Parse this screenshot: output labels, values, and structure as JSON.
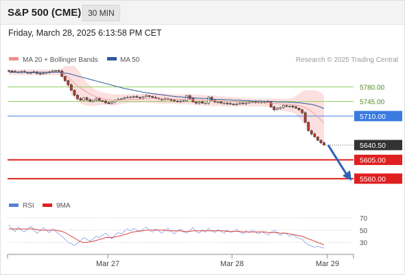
{
  "header": {
    "title": "S&P 500 (CME)",
    "interval": "30 MIN",
    "datetime": "Friday, March 28, 2025 6:13:58 PM CET",
    "credit": "Research © 2025 Trading Central"
  },
  "legend": {
    "ma20_label": "MA 20 + Bollinger Bands",
    "ma50_label": "MA 50",
    "rsi_label": "RSI",
    "ma9_label": "9MA"
  },
  "colors": {
    "bollinger_fill": "#fbd5d5",
    "ma20": "#e8a0a0",
    "ma50": "#2f5b9a",
    "resistance": "#8fcf5a",
    "pivot": "#3a7be0",
    "support": "#e02020",
    "current": "#333333",
    "arrow": "#2a62b8",
    "rsi": "#5b7fd8",
    "rsi_ma": "#d94040",
    "candle_up": "#ffffff",
    "candle_down": "#c0392b"
  },
  "chart_data": [
    {
      "type": "candlestick",
      "title": "S&P 500 (CME)",
      "x_tick_labels": [
        "Mar 27",
        "Mar 28",
        "Mar 29"
      ],
      "ylim": [
        5535,
        5830
      ],
      "levels": [
        {
          "value": 5780.0,
          "label": "5780.00",
          "kind": "resistance"
        },
        {
          "value": 5745.0,
          "label": "5745.00",
          "kind": "resistance"
        },
        {
          "value": 5710.0,
          "label": "5710.00",
          "kind": "pivot"
        },
        {
          "value": 5640.5,
          "label": "5640.50",
          "kind": "current"
        },
        {
          "value": 5605.0,
          "label": "5605.00",
          "kind": "support"
        },
        {
          "value": 5560.0,
          "label": "5560.00",
          "kind": "support"
        }
      ],
      "closes": [
        5818,
        5817,
        5816,
        5815,
        5817,
        5815,
        5813,
        5814,
        5816,
        5812,
        5811,
        5813,
        5815,
        5816,
        5818,
        5819,
        5818,
        5805,
        5795,
        5785,
        5772,
        5760,
        5752,
        5748,
        5754,
        5749,
        5745,
        5748,
        5752,
        5747,
        5746,
        5742,
        5740,
        5744,
        5748,
        5750,
        5752,
        5754,
        5755,
        5756,
        5757,
        5755,
        5753,
        5756,
        5759,
        5757,
        5755,
        5753,
        5751,
        5749,
        5752,
        5750,
        5748,
        5746,
        5745,
        5746,
        5747,
        5759,
        5752,
        5744,
        5741,
        5744,
        5741,
        5741,
        5755,
        5748,
        5744,
        5744,
        5741,
        5741,
        5740,
        5739,
        5738,
        5739,
        5741,
        5740,
        5741,
        5743,
        5744,
        5743,
        5742,
        5743,
        5744,
        5745,
        5732,
        5725,
        5728,
        5731,
        5735,
        5733,
        5734,
        5732,
        5729,
        5725,
        5718,
        5695,
        5675,
        5667,
        5660,
        5652,
        5646,
        5640.5
      ],
      "ma20": [
        5815,
        5815,
        5815,
        5815,
        5815,
        5815,
        5815,
        5815,
        5815,
        5815,
        5815,
        5815,
        5815,
        5815,
        5815,
        5815,
        5815,
        5813,
        5809,
        5803,
        5796,
        5789,
        5783,
        5777,
        5772,
        5767,
        5763,
        5759,
        5756,
        5754,
        5752,
        5750,
        5749,
        5748,
        5748,
        5748,
        5748,
        5749,
        5749,
        5750,
        5750,
        5750,
        5750,
        5751,
        5751,
        5752,
        5752,
        5752,
        5751,
        5751,
        5751,
        5751,
        5751,
        5750,
        5750,
        5750,
        5750,
        5750,
        5750,
        5749,
        5749,
        5748,
        5748,
        5747,
        5747,
        5747,
        5747,
        5746,
        5746,
        5746,
        5745,
        5745,
        5745,
        5744,
        5744,
        5744,
        5743,
        5743,
        5743,
        5742,
        5742,
        5742,
        5742,
        5742,
        5741,
        5740,
        5740,
        5739,
        5739,
        5738,
        5738,
        5737,
        5736,
        5735,
        5733,
        5730,
        5726,
        5721,
        5715,
        5708,
        5701,
        5693
      ],
      "ma50": [
        5815,
        5815,
        5815,
        5815,
        5815,
        5815,
        5815,
        5815,
        5815,
        5815,
        5815,
        5815,
        5815,
        5815,
        5815,
        5815,
        5815,
        5814,
        5813,
        5812,
        5810,
        5808,
        5806,
        5804,
        5802,
        5800,
        5798,
        5796,
        5794,
        5792,
        5790,
        5788,
        5786,
        5784,
        5782,
        5780,
        5778,
        5776,
        5775,
        5773,
        5772,
        5770,
        5769,
        5767,
        5766,
        5765,
        5764,
        5763,
        5762,
        5761,
        5760,
        5759,
        5758,
        5757,
        5756,
        5756,
        5755,
        5755,
        5754,
        5754,
        5753,
        5753,
        5752,
        5752,
        5751,
        5751,
        5750,
        5750,
        5750,
        5749,
        5749,
        5749,
        5748,
        5748,
        5748,
        5747,
        5747,
        5747,
        5746,
        5746,
        5746,
        5746,
        5745,
        5745,
        5745,
        5745,
        5744,
        5744,
        5744,
        5744,
        5743,
        5743,
        5742,
        5742,
        5741,
        5740,
        5739,
        5738,
        5736,
        5734,
        5731,
        5728
      ],
      "bollinger_upper": [
        5822,
        5822,
        5822,
        5822,
        5822,
        5822,
        5822,
        5822,
        5822,
        5822,
        5822,
        5822,
        5822,
        5822,
        5822,
        5822,
        5822,
        5824,
        5830,
        5830,
        5830,
        5830,
        5822,
        5812,
        5800,
        5790,
        5783,
        5777,
        5772,
        5769,
        5767,
        5765,
        5764,
        5763,
        5762,
        5762,
        5762,
        5762,
        5763,
        5763,
        5763,
        5763,
        5763,
        5764,
        5764,
        5764,
        5765,
        5765,
        5764,
        5764,
        5764,
        5763,
        5763,
        5762,
        5762,
        5762,
        5762,
        5763,
        5763,
        5762,
        5762,
        5761,
        5761,
        5760,
        5760,
        5759,
        5759,
        5758,
        5758,
        5757,
        5756,
        5756,
        5755,
        5755,
        5754,
        5754,
        5753,
        5753,
        5753,
        5752,
        5752,
        5752,
        5752,
        5752,
        5752,
        5752,
        5752,
        5751,
        5751,
        5751,
        5752,
        5754,
        5758,
        5764,
        5770,
        5772,
        5772,
        5772,
        5772,
        5770,
        5766,
        5760
      ],
      "bollinger_lower": [
        5808,
        5808,
        5808,
        5808,
        5808,
        5808,
        5808,
        5808,
        5808,
        5808,
        5808,
        5808,
        5808,
        5808,
        5808,
        5808,
        5808,
        5802,
        5790,
        5778,
        5762,
        5752,
        5745,
        5740,
        5737,
        5735,
        5734,
        5734,
        5735,
        5736,
        5737,
        5737,
        5736,
        5735,
        5736,
        5737,
        5739,
        5740,
        5741,
        5742,
        5742,
        5742,
        5742,
        5742,
        5742,
        5741,
        5741,
        5741,
        5740,
        5740,
        5740,
        5740,
        5740,
        5739,
        5739,
        5738,
        5738,
        5738,
        5737,
        5737,
        5736,
        5736,
        5735,
        5735,
        5734,
        5734,
        5734,
        5734,
        5734,
        5733,
        5733,
        5733,
        5733,
        5733,
        5733,
        5733,
        5733,
        5733,
        5733,
        5733,
        5733,
        5733,
        5732,
        5732,
        5731,
        5728,
        5725,
        5723,
        5722,
        5721,
        5720,
        5718,
        5714,
        5706,
        5696,
        5688,
        5680,
        5672,
        5666,
        5660,
        5652,
        5644
      ],
      "projection": {
        "from": 5640.5,
        "to": 5560.0
      }
    },
    {
      "type": "line",
      "title": "RSI",
      "ylim": [
        15,
        80
      ],
      "ticks": [
        70,
        50,
        30
      ],
      "series": [
        {
          "name": "RSI",
          "values": [
            58,
            52,
            48,
            55,
            50,
            47,
            52,
            56,
            50,
            45,
            49,
            54,
            50,
            46,
            52,
            48,
            44,
            40,
            35,
            30,
            28,
            25,
            29,
            33,
            38,
            35,
            32,
            36,
            40,
            38,
            42,
            45,
            40,
            36,
            42,
            46,
            44,
            48,
            52,
            49,
            53,
            50,
            47,
            52,
            55,
            50,
            47,
            52,
            49,
            45,
            50,
            53,
            48,
            44,
            49,
            52,
            47,
            45,
            50,
            54,
            48,
            45,
            50,
            47,
            53,
            49,
            46,
            51,
            48,
            45,
            50,
            46,
            48,
            51,
            47,
            44,
            49,
            46,
            50,
            47,
            44,
            48,
            45,
            42,
            46,
            50,
            45,
            41,
            46,
            44,
            40,
            43,
            39,
            37,
            35,
            30,
            26,
            24,
            22,
            24,
            22,
            21
          ]
        },
        {
          "name": "9MA",
          "values": [
            52,
            52,
            52,
            52,
            52,
            52,
            52,
            52,
            52,
            51,
            50,
            50,
            50,
            50,
            50,
            50,
            49,
            48,
            46,
            43,
            40,
            37,
            34,
            31,
            30,
            30,
            31,
            32,
            33,
            35,
            36,
            38,
            38,
            38,
            39,
            40,
            41,
            43,
            44,
            46,
            47,
            48,
            49,
            49,
            50,
            50,
            50,
            50,
            50,
            50,
            50,
            49,
            49,
            49,
            49,
            49,
            48,
            48,
            48,
            49,
            49,
            49,
            49,
            49,
            49,
            49,
            49,
            49,
            49,
            49,
            48,
            48,
            48,
            48,
            48,
            47,
            47,
            47,
            47,
            47,
            47,
            47,
            47,
            46,
            46,
            46,
            46,
            45,
            45,
            45,
            44,
            43,
            42,
            41,
            40,
            38,
            36,
            34,
            32,
            30,
            28,
            26
          ]
        }
      ]
    }
  ]
}
